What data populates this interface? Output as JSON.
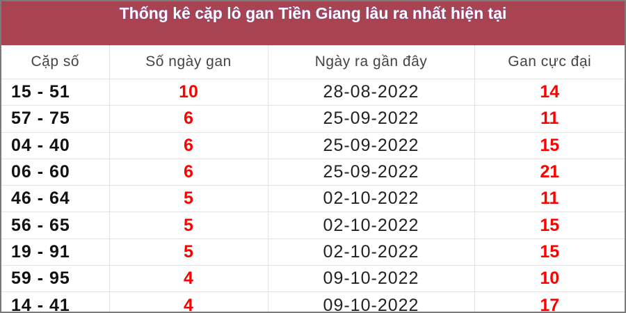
{
  "title": "Thống kê cặp lô gan Tiền Giang lâu ra nhất hiện tại",
  "colors": {
    "header_bg": "#a84452",
    "value_red": "#ff0000"
  },
  "columns": [
    "Cặp số",
    "Số ngày gan",
    "Ngày ra gần đây",
    "Gan cực đại"
  ],
  "rows": [
    [
      "15 - 51",
      "10",
      "28-08-2022",
      "14"
    ],
    [
      "57 - 75",
      "6",
      "25-09-2022",
      "11"
    ],
    [
      "04 - 40",
      "6",
      "25-09-2022",
      "15"
    ],
    [
      "06 - 60",
      "6",
      "25-09-2022",
      "21"
    ],
    [
      "46 - 64",
      "5",
      "02-10-2022",
      "11"
    ],
    [
      "56 - 65",
      "5",
      "02-10-2022",
      "15"
    ],
    [
      "19 - 91",
      "5",
      "02-10-2022",
      "15"
    ],
    [
      "59 - 95",
      "4",
      "09-10-2022",
      "10"
    ],
    [
      "14 - 41",
      "4",
      "09-10-2022",
      "17"
    ]
  ]
}
